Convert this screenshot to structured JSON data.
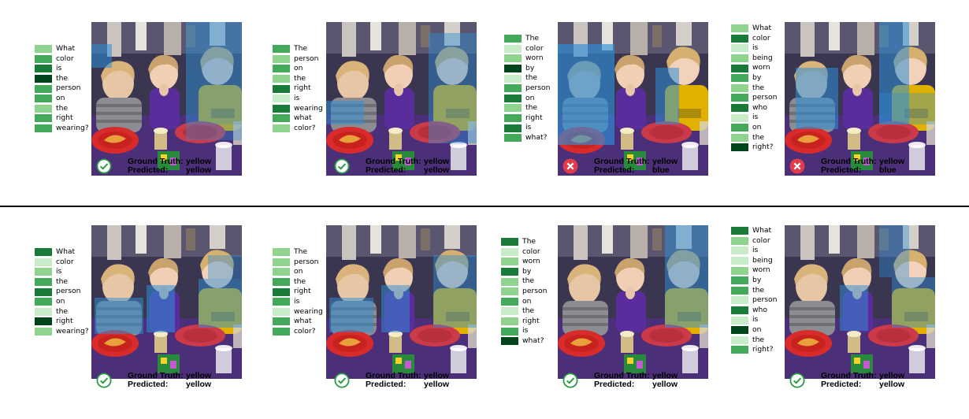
{
  "colors": {
    "very_light": "#c8ebc9",
    "light": "#8fd38f",
    "medium": "#44a95a",
    "dark": "#1a7a3a",
    "very_dark": "#00441b",
    "overlay": "#2e8fd8",
    "correct": "#2e9b47",
    "incorrect": "#e33b4b"
  },
  "question_a": [
    "What",
    "color",
    "is",
    "the",
    "person",
    "on",
    "the",
    "right",
    "wearing?"
  ],
  "question_b": [
    "The",
    "person",
    "on",
    "the",
    "right",
    "is",
    "wearing",
    "what",
    "color?"
  ],
  "question_c": [
    "The",
    "color",
    "worn",
    "by",
    "the",
    "person",
    "on",
    "the",
    "right",
    "is",
    "what?"
  ],
  "question_d": [
    "What",
    "color",
    "is",
    "being",
    "worn",
    "by",
    "the",
    "person",
    "who",
    "is",
    "on",
    "the",
    "right?"
  ],
  "labels": {
    "ground_truth": "Ground Truth:",
    "predicted": "Predicted:"
  },
  "rows": [
    {
      "panels": [
        {
          "weights": [
            "light",
            "medium",
            "dark",
            "very_dark",
            "medium",
            "medium",
            "light",
            "medium",
            "medium"
          ],
          "ground_truth": "yellow",
          "predicted": "yellow",
          "correct": true,
          "icon": "check-circle-icon"
        },
        {
          "weights": [
            "medium",
            "light",
            "medium",
            "light",
            "dark",
            "very_light",
            "dark",
            "medium",
            "light"
          ],
          "ground_truth": "yellow",
          "predicted": "yellow",
          "correct": true,
          "icon": "check-circle-icon"
        },
        {
          "weights": [
            "medium",
            "very_light",
            "light",
            "very_dark",
            "very_light",
            "medium",
            "dark",
            "light",
            "medium",
            "dark",
            "medium"
          ],
          "ground_truth": "yellow",
          "predicted": "blue",
          "correct": false,
          "icon": "x-circle-icon"
        },
        {
          "weights": [
            "light",
            "dark",
            "very_light",
            "light",
            "dark",
            "medium",
            "light",
            "medium",
            "dark",
            "very_light",
            "medium",
            "light",
            "very_dark"
          ],
          "ground_truth": "yellow",
          "predicted": "blue",
          "correct": false,
          "icon": "x-circle-icon"
        }
      ]
    },
    {
      "panels": [
        {
          "weights": [
            "dark",
            "very_light",
            "light",
            "medium",
            "dark",
            "medium",
            "very_light",
            "very_dark",
            "light"
          ],
          "ground_truth": "yellow",
          "predicted": "yellow",
          "correct": true,
          "icon": "check-circle-icon"
        },
        {
          "weights": [
            "light",
            "light",
            "light",
            "medium",
            "dark",
            "medium",
            "very_light",
            "medium",
            "medium"
          ],
          "ground_truth": "yellow",
          "predicted": "yellow",
          "correct": true,
          "icon": "check-circle-icon"
        },
        {
          "weights": [
            "dark",
            "very_light",
            "light",
            "dark",
            "light",
            "light",
            "medium",
            "very_light",
            "light",
            "medium",
            "very_dark"
          ],
          "ground_truth": "yellow",
          "predicted": "yellow",
          "correct": true,
          "icon": "check-circle-icon"
        },
        {
          "weights": [
            "dark",
            "light",
            "very_light",
            "very_light",
            "light",
            "medium",
            "medium",
            "very_light",
            "dark",
            "very_light",
            "very_dark",
            "very_light",
            "medium"
          ],
          "ground_truth": "yellow",
          "predicted": "yellow",
          "correct": true,
          "icon": "check-circle-icon"
        }
      ]
    }
  ]
}
